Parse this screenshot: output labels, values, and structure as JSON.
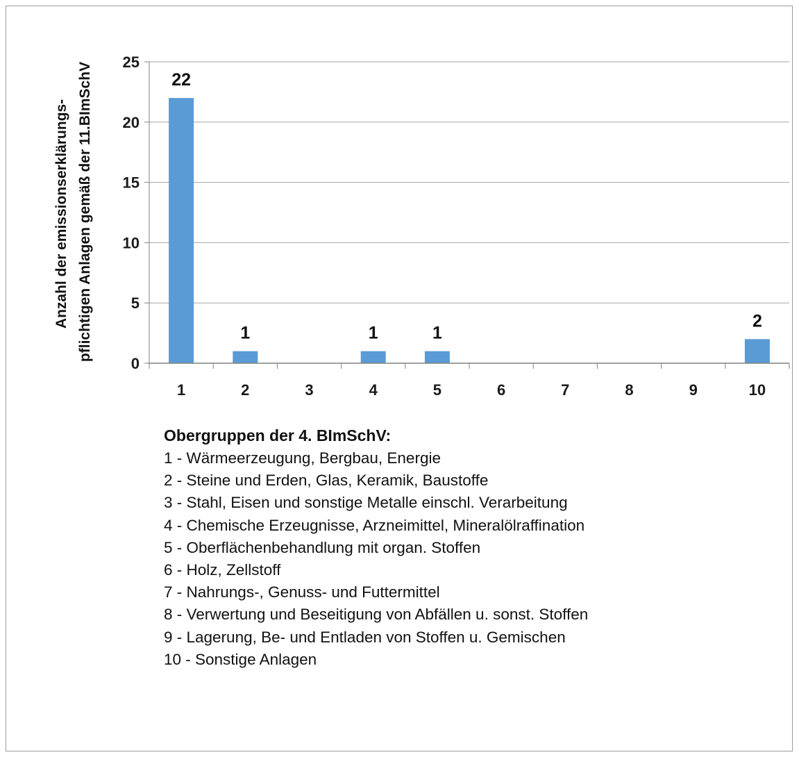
{
  "chart_data": {
    "type": "bar",
    "categories": [
      "1",
      "2",
      "3",
      "4",
      "5",
      "6",
      "7",
      "8",
      "9",
      "10"
    ],
    "values": [
      22,
      1,
      0,
      1,
      1,
      0,
      0,
      0,
      0,
      2
    ],
    "data_labels": [
      "22",
      "1",
      "",
      "1",
      "1",
      "",
      "",
      "",
      "",
      "2"
    ],
    "title": "",
    "xlabel": "",
    "ylabel_lines": [
      "Anzahl der emissionserklärungs-",
      "pflichtigen Anlagen gemäß der 11.BImSchV"
    ],
    "ylim": [
      0,
      25
    ],
    "yticks": [
      0,
      5,
      10,
      15,
      20,
      25
    ],
    "grid": true,
    "bar_color": "#5b9bd5",
    "gridline_color": "#a6a6a6"
  },
  "legend": {
    "title": "Obergruppen der 4. BImSchV:",
    "items": [
      "1   - Wärmeerzeugung, Bergbau, Energie",
      "2   - Steine und Erden, Glas, Keramik, Baustoffe",
      "3   - Stahl, Eisen und sonstige Metalle einschl. Verarbeitung",
      "4   - Chemische Erzeugnisse, Arzneimittel, Mineralölraffination",
      "5   - Oberflächenbehandlung mit organ.  Stoffen",
      "6   - Holz, Zellstoff",
      "7   - Nahrungs-, Genuss- und Futtermittel",
      "8   - Verwertung und Beseitigung von Abfällen u. sonst. Stoffen",
      "9   - Lagerung, Be- und Entladen von Stoffen u. Gemischen",
      "10 - Sonstige Anlagen"
    ]
  }
}
